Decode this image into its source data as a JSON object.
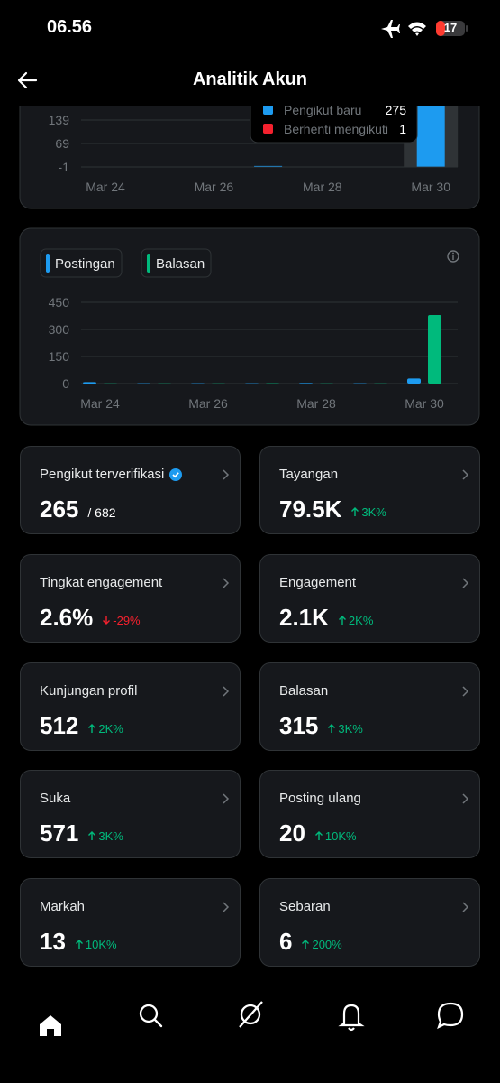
{
  "status_bar": {
    "time": "06.56",
    "battery": "17"
  },
  "header": {
    "title": "Analitik Akun"
  },
  "chart_data": [
    {
      "type": "bar",
      "stacked": true,
      "categories": [
        "Mar 24",
        null,
        "Mar 26",
        null,
        "Mar 28",
        null,
        "Mar 30"
      ],
      "series": [
        {
          "name": "Pengikut baru",
          "color": "#1d9bf0",
          "values": [
            0,
            0,
            0,
            2,
            0,
            0,
            275
          ]
        },
        {
          "name": "Berhenti mengikuti",
          "color": "#f4212e",
          "values": [
            0,
            0,
            0,
            0,
            0,
            0,
            1
          ]
        }
      ],
      "ylim": [
        -1,
        279
      ],
      "yticks": [
        -1,
        69,
        139
      ],
      "grid": true,
      "selected": 6
    },
    {
      "type": "bar",
      "categories": [
        "Mar 24",
        null,
        "Mar 26",
        null,
        "Mar 28",
        null,
        "Mar 30"
      ],
      "series": [
        {
          "name": "Postingan",
          "color": "#1d9bf0",
          "values": [
            8,
            2,
            2,
            2,
            3,
            2,
            28
          ]
        },
        {
          "name": "Balasan",
          "color": "#00ba7c",
          "values": [
            1,
            1,
            1,
            2,
            1,
            1,
            380
          ]
        }
      ],
      "ylim": [
        0,
        450
      ],
      "yticks": [
        0,
        150,
        300,
        450
      ],
      "grid": true
    }
  ],
  "metrics": [
    {
      "label": "Pengikut terverifikasi",
      "value": "265",
      "total": "/ 682",
      "verified": true
    },
    {
      "label": "Tayangan",
      "value": "79.5K",
      "change": "3K%",
      "trend": "up"
    },
    {
      "label": "Tingkat engagement",
      "value": "2.6%",
      "change": "-29%",
      "trend": "down"
    },
    {
      "label": "Engagement",
      "value": "2.1K",
      "change": "2K%",
      "trend": "up"
    },
    {
      "label": "Kunjungan profil",
      "value": "512",
      "change": "2K%",
      "trend": "up"
    },
    {
      "label": "Balasan",
      "value": "315",
      "change": "3K%",
      "trend": "up"
    },
    {
      "label": "Suka",
      "value": "571",
      "change": "3K%",
      "trend": "up"
    },
    {
      "label": "Posting ulang",
      "value": "20",
      "change": "10K%",
      "trend": "up"
    },
    {
      "label": "Markah",
      "value": "13",
      "change": "10K%",
      "trend": "up"
    },
    {
      "label": "Sebaran",
      "value": "6",
      "change": "200%",
      "trend": "up"
    }
  ]
}
